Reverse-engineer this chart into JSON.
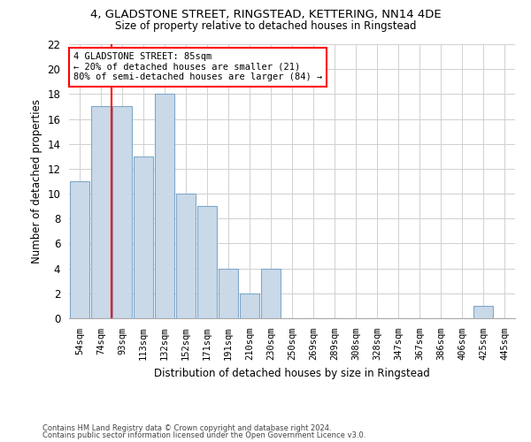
{
  "title_line1": "4, GLADSTONE STREET, RINGSTEAD, KETTERING, NN14 4DE",
  "title_line2": "Size of property relative to detached houses in Ringstead",
  "xlabel": "Distribution of detached houses by size in Ringstead",
  "ylabel": "Number of detached properties",
  "categories": [
    "54sqm",
    "74sqm",
    "93sqm",
    "113sqm",
    "132sqm",
    "152sqm",
    "171sqm",
    "191sqm",
    "210sqm",
    "230sqm",
    "250sqm",
    "269sqm",
    "289sqm",
    "308sqm",
    "328sqm",
    "347sqm",
    "367sqm",
    "386sqm",
    "406sqm",
    "425sqm",
    "445sqm"
  ],
  "values": [
    11,
    17,
    17,
    13,
    18,
    10,
    9,
    4,
    2,
    4,
    0,
    0,
    0,
    0,
    0,
    0,
    0,
    0,
    0,
    1,
    0
  ],
  "bar_color": "#c9d9e8",
  "bar_edge_color": "#7fa8c9",
  "ylim": [
    0,
    22
  ],
  "yticks": [
    0,
    2,
    4,
    6,
    8,
    10,
    12,
    14,
    16,
    18,
    20,
    22
  ],
  "vline_x": 1.5,
  "annotation_box_text": "4 GLADSTONE STREET: 85sqm\n← 20% of detached houses are smaller (21)\n80% of semi-detached houses are larger (84) →",
  "footnote1": "Contains HM Land Registry data © Crown copyright and database right 2024.",
  "footnote2": "Contains public sector information licensed under the Open Government Licence v3.0.",
  "bg_color": "#ffffff",
  "grid_color": "#d0d0d0"
}
